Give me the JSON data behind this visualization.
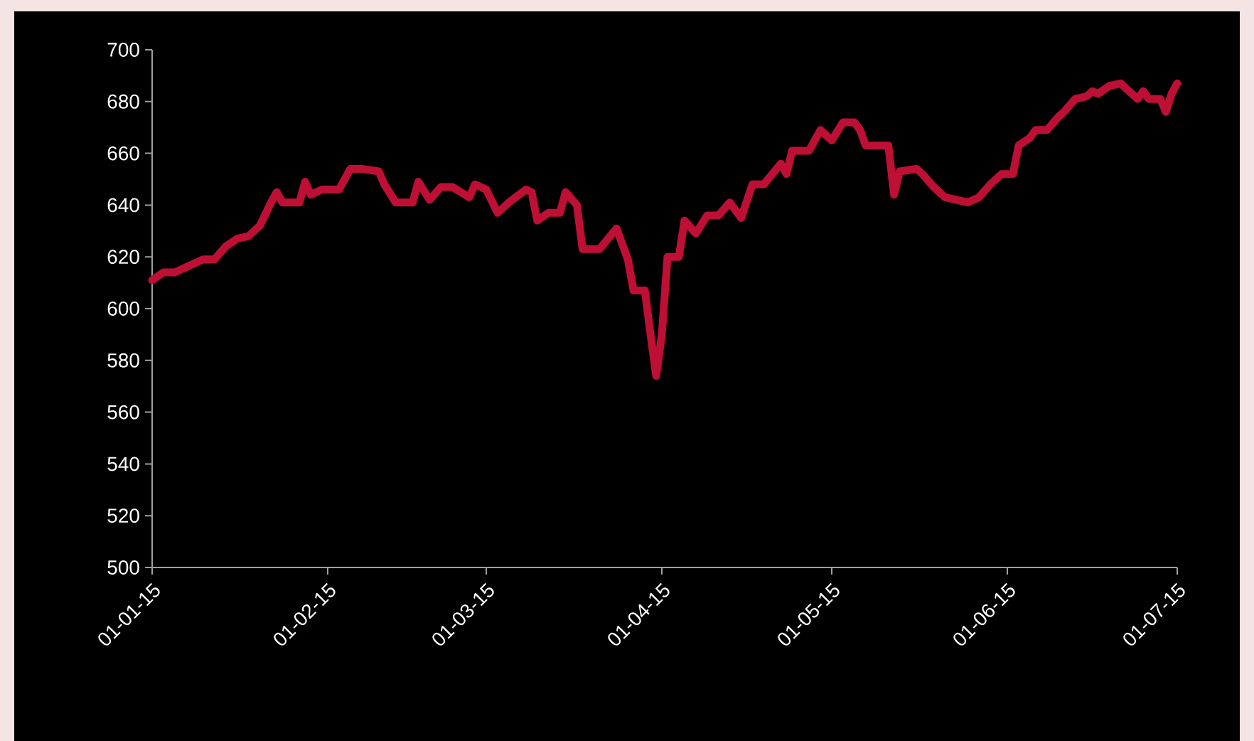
{
  "chart_data": {
    "type": "line",
    "color": "#be0f34",
    "marker": "none",
    "line_style": "solid",
    "x": [
      "2015-01-01",
      "2015-01-03",
      "2015-01-05",
      "2015-01-08",
      "2015-01-10",
      "2015-01-12",
      "2015-01-14",
      "2015-01-16",
      "2015-01-18",
      "2015-01-20",
      "2015-01-22",
      "2015-01-23",
      "2015-01-24",
      "2015-01-27",
      "2015-01-28",
      "2015-01-29",
      "2015-01-31",
      "2015-02-03",
      "2015-02-05",
      "2015-02-07",
      "2015-02-10",
      "2015-02-11",
      "2015-02-13",
      "2015-02-16",
      "2015-02-17",
      "2015-02-19",
      "2015-02-21",
      "2015-02-23",
      "2015-02-26",
      "2015-02-27",
      "2015-03-01",
      "2015-03-03",
      "2015-03-05",
      "2015-03-08",
      "2015-03-09",
      "2015-03-10",
      "2015-03-12",
      "2015-03-14",
      "2015-03-15",
      "2015-03-17",
      "2015-03-18",
      "2015-03-21",
      "2015-03-24",
      "2015-03-26",
      "2015-03-27",
      "2015-03-29",
      "2015-03-30",
      "2015-03-31",
      "2015-04-01",
      "2015-04-02",
      "2015-04-04",
      "2015-04-05",
      "2015-04-07",
      "2015-04-09",
      "2015-04-11",
      "2015-04-13",
      "2015-04-15",
      "2015-04-17",
      "2015-04-19",
      "2015-04-22",
      "2015-04-23",
      "2015-04-24",
      "2015-04-27",
      "2015-04-29",
      "2015-05-01",
      "2015-05-03",
      "2015-05-05",
      "2015-05-06",
      "2015-05-07",
      "2015-05-11",
      "2015-05-12",
      "2015-05-13",
      "2015-05-16",
      "2015-05-17",
      "2015-05-19",
      "2015-05-21",
      "2015-05-25",
      "2015-05-27",
      "2015-05-29",
      "2015-05-31",
      "2015-06-02",
      "2015-06-03",
      "2015-06-05",
      "2015-06-06",
      "2015-06-08",
      "2015-06-10",
      "2015-06-11",
      "2015-06-13",
      "2015-06-15",
      "2015-06-16",
      "2015-06-17",
      "2015-06-19",
      "2015-06-21",
      "2015-06-22",
      "2015-06-24",
      "2015-06-25",
      "2015-06-26",
      "2015-06-28",
      "2015-06-29",
      "2015-06-30",
      "2015-07-01"
    ],
    "values": [
      611,
      614,
      614,
      617,
      619,
      619,
      624,
      627,
      628,
      632,
      641,
      645,
      641,
      641,
      649,
      644,
      646,
      646,
      654,
      654,
      653,
      648,
      641,
      641,
      649,
      642,
      647,
      647,
      643,
      648,
      646,
      637,
      641,
      646,
      645,
      634,
      637,
      637,
      645,
      640,
      623,
      623,
      631,
      619,
      607,
      607,
      590,
      574,
      590,
      620,
      620,
      634,
      629,
      636,
      636,
      641,
      635,
      648,
      648,
      656,
      652,
      661,
      661,
      669,
      665,
      672,
      672,
      669,
      663,
      663,
      644,
      653,
      654,
      652,
      647,
      643,
      641,
      643,
      648,
      652,
      652,
      663,
      666,
      669,
      669,
      674,
      676,
      681,
      682,
      684,
      683,
      686,
      687,
      685,
      681,
      684,
      681,
      681,
      676,
      683,
      687
    ],
    "xlim": [
      "2015-01-01",
      "2015-07-01"
    ],
    "ylim": [
      500,
      700
    ],
    "xticks": [
      {
        "value": "2015-01-01",
        "label": "01-01-15"
      },
      {
        "value": "2015-02-01",
        "label": "01-02-15"
      },
      {
        "value": "2015-03-01",
        "label": "01-03-15"
      },
      {
        "value": "2015-04-01",
        "label": "01-04-15"
      },
      {
        "value": "2015-05-01",
        "label": "01-05-15"
      },
      {
        "value": "2015-06-01",
        "label": "01-06-15"
      },
      {
        "value": "2015-07-01",
        "label": "01-07-15"
      }
    ],
    "yticks": [
      500,
      520,
      540,
      560,
      580,
      600,
      620,
      640,
      660,
      680,
      700
    ]
  }
}
